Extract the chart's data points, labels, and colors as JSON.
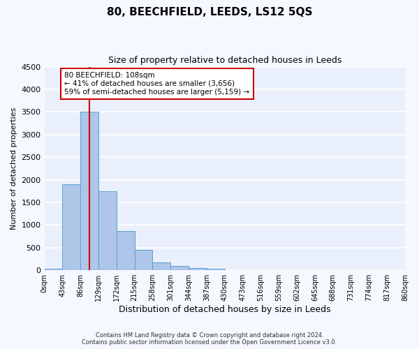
{
  "title": "80, BEECHFIELD, LEEDS, LS12 5QS",
  "subtitle": "Size of property relative to detached houses in Leeds",
  "xlabel": "Distribution of detached houses by size in Leeds",
  "ylabel": "Number of detached properties",
  "bin_labels": [
    "0sqm",
    "43sqm",
    "86sqm",
    "129sqm",
    "172sqm",
    "215sqm",
    "258sqm",
    "301sqm",
    "344sqm",
    "387sqm",
    "430sqm",
    "473sqm",
    "516sqm",
    "559sqm",
    "602sqm",
    "645sqm",
    "688sqm",
    "731sqm",
    "774sqm",
    "817sqm",
    "860sqm"
  ],
  "bin_edges": [
    0,
    43,
    86,
    129,
    172,
    215,
    258,
    301,
    344,
    387,
    430,
    473,
    516,
    559,
    602,
    645,
    688,
    731,
    774,
    817,
    860
  ],
  "bar_heights": [
    30,
    1900,
    3500,
    1750,
    860,
    450,
    175,
    100,
    55,
    30,
    0,
    0,
    0,
    0,
    0,
    0,
    0,
    0,
    0,
    0
  ],
  "bar_color": "#aec6e8",
  "bar_edge_color": "#5a9fd4",
  "vline_x": 108,
  "vline_color": "#cc0000",
  "annotation_title": "80 BEECHFIELD: 108sqm",
  "annotation_line1": "← 41% of detached houses are smaller (3,656)",
  "annotation_line2": "59% of semi-detached houses are larger (5,159) →",
  "annotation_box_color": "#ffffff",
  "annotation_box_edge": "#cc0000",
  "ylim": [
    0,
    4500
  ],
  "yticks": [
    0,
    500,
    1000,
    1500,
    2000,
    2500,
    3000,
    3500,
    4000,
    4500
  ],
  "background_color": "#eaf0fb",
  "grid_color": "#ffffff",
  "fig_background": "#f5f8ff",
  "footer_line1": "Contains HM Land Registry data © Crown copyright and database right 2024.",
  "footer_line2": "Contains public sector information licensed under the Open Government Licence v3.0."
}
